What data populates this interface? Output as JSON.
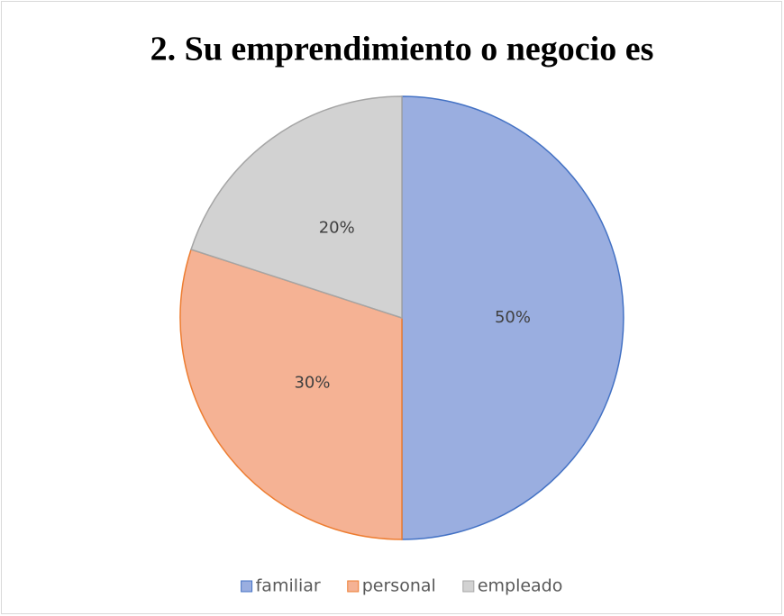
{
  "chart_data": {
    "type": "pie",
    "title": "2. Su emprendimiento o negocio es",
    "categories": [
      "familiar",
      "personal",
      "empleado"
    ],
    "values": [
      50,
      30,
      20
    ],
    "value_labels": [
      "50%",
      "30%",
      "20%"
    ],
    "colors": [
      "#9aaee0",
      "#f5b294",
      "#d2d2d2"
    ],
    "edge_colors": [
      "#4472c4",
      "#ed7d31",
      "#a5a5a5"
    ],
    "legend": "bottom"
  }
}
